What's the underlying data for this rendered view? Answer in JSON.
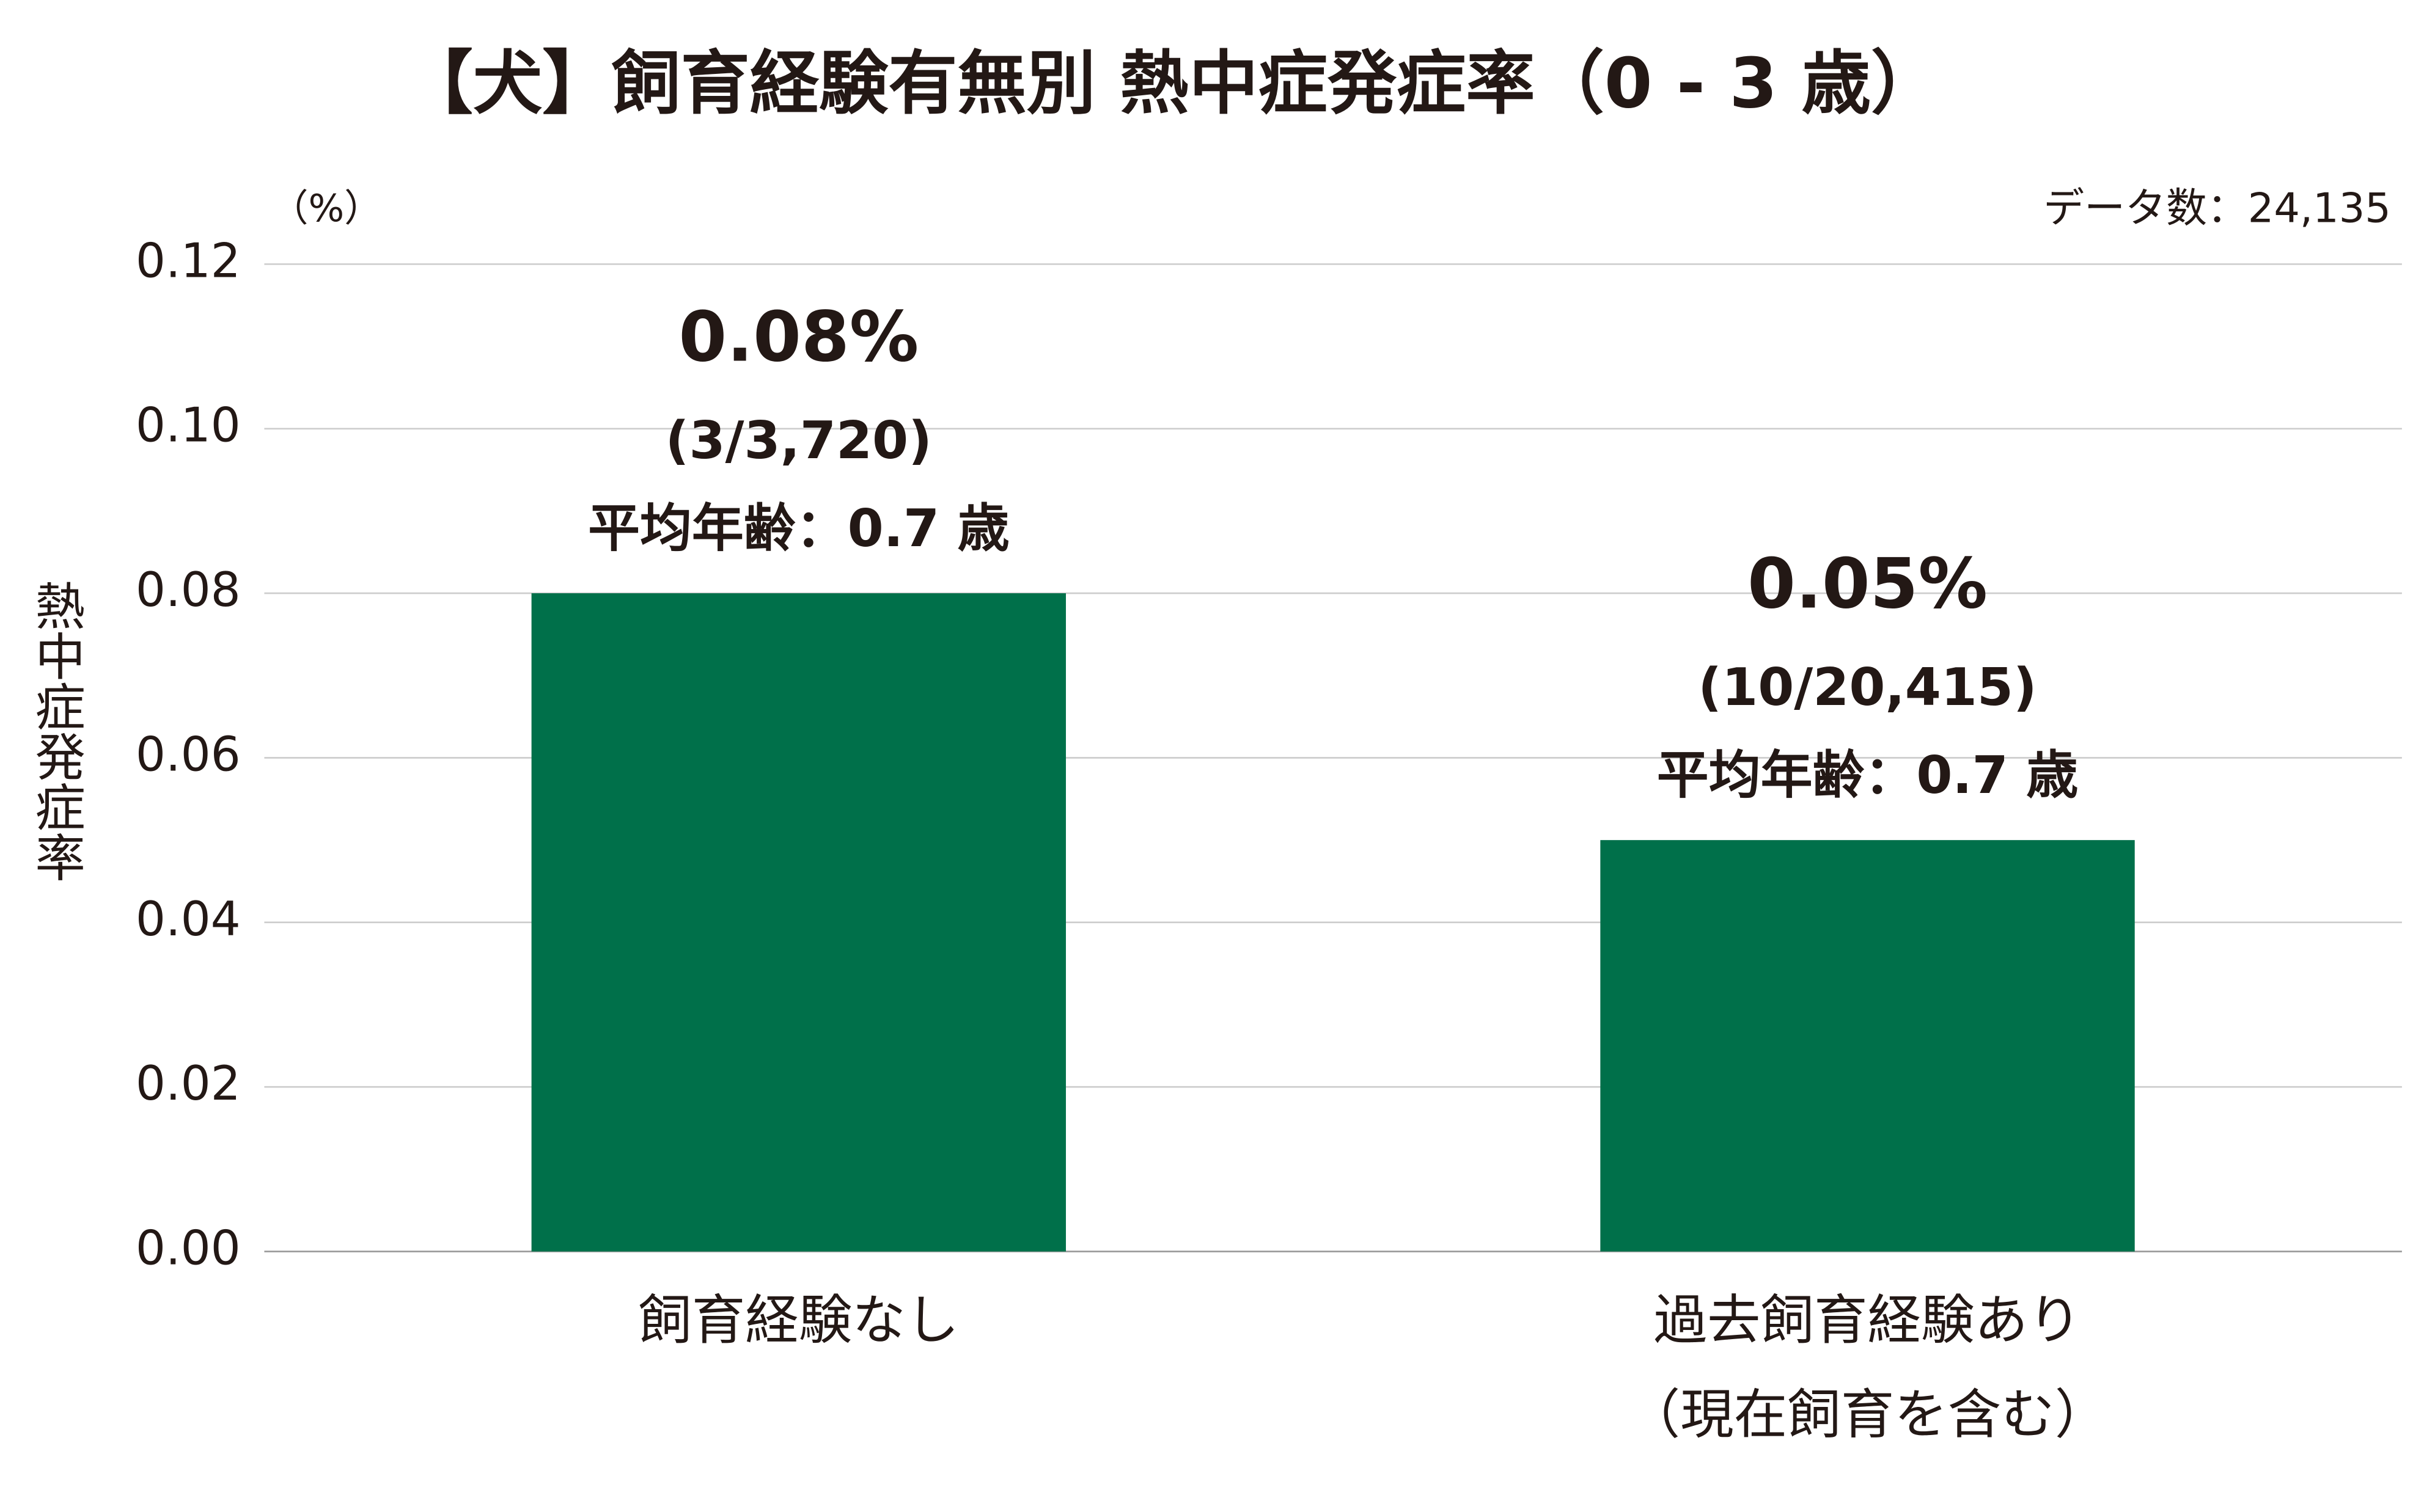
{
  "chart_data": {
    "type": "bar",
    "title": "【犬】飼育経験有無別 熱中症発症率（0 - 3 歳）",
    "y_unit": "（%）",
    "note": "データ数：24,135",
    "ylabel": "熱中症発症率",
    "categories": [
      [
        "飼育経験なし"
      ],
      [
        "過去飼育経験あり",
        "（現在飼育を含む）"
      ]
    ],
    "values": [
      0.08,
      0.05
    ],
    "value_labels": [
      "0.08%",
      "0.05%"
    ],
    "annotations": [
      [
        "(3/3,720)",
        "平均年齢：0.7 歳"
      ],
      [
        "(10/20,415)",
        "平均年齢：0.7 歳"
      ]
    ],
    "color": "#00704a",
    "ylim": [
      0,
      0.12
    ],
    "yticks": [
      {
        "value": 0,
        "label": "0.00"
      },
      0.02,
      0.04,
      0.06,
      0.08,
      {
        "value": 0.1,
        "label": "0.10"
      },
      0.12
    ],
    "grid": true
  }
}
